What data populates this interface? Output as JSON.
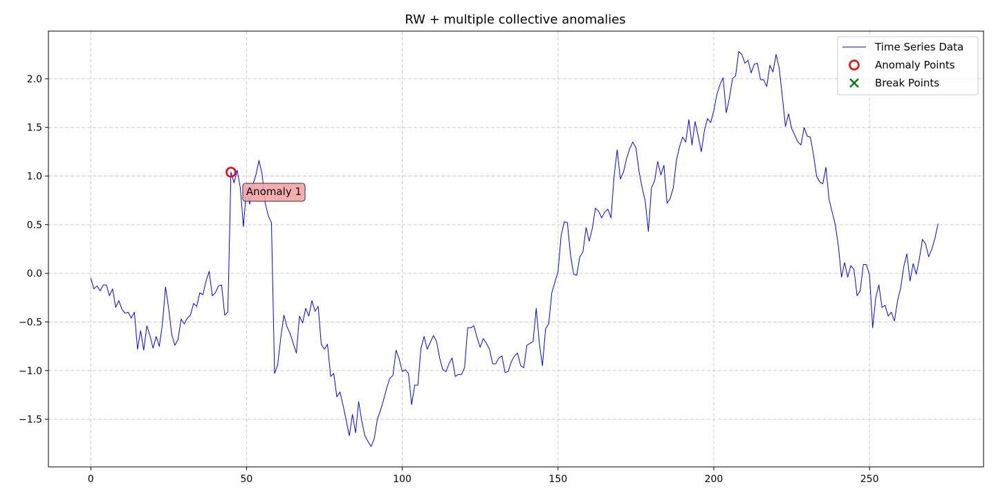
{
  "chart_data": {
    "type": "line",
    "title": "RW + multiple collective anomalies",
    "xlabel": "",
    "ylabel": "",
    "xlim": [
      -13.6,
      286.6
    ],
    "ylim": [
      -1.99,
      2.49
    ],
    "xticks": [
      0,
      50,
      100,
      150,
      200,
      250
    ],
    "yticks": [
      -1.5,
      -1.0,
      -0.5,
      0.0,
      0.5,
      1.0,
      1.5,
      2.0
    ],
    "xtick_labels": [
      "0",
      "50",
      "100",
      "150",
      "200",
      "250"
    ],
    "ytick_labels": [
      "−1.5",
      "−1.0",
      "−0.5",
      "0.0",
      "0.5",
      "1.0",
      "1.5",
      "2.0"
    ],
    "grid": true,
    "legend_position": "top-right",
    "series": [
      {
        "name": "Time Series Data",
        "color": "#0000ff",
        "x_start": 0,
        "values": [
          -0.05,
          -0.16,
          -0.13,
          -0.18,
          -0.12,
          -0.12,
          -0.23,
          -0.16,
          -0.35,
          -0.28,
          -0.37,
          -0.41,
          -0.4,
          -0.46,
          -0.4,
          -0.78,
          -0.59,
          -0.79,
          -0.54,
          -0.64,
          -0.77,
          -0.65,
          -0.75,
          -0.52,
          -0.14,
          -0.36,
          -0.63,
          -0.74,
          -0.68,
          -0.47,
          -0.52,
          -0.46,
          -0.43,
          -0.31,
          -0.34,
          -0.2,
          -0.22,
          -0.08,
          0.02,
          -0.23,
          -0.2,
          -0.13,
          -0.12,
          -0.43,
          -0.4,
          1.04,
          0.93,
          1.06,
          0.88,
          0.48,
          0.88,
          0.71,
          0.91,
          1.01,
          1.16,
          1.02,
          0.72,
          0.59,
          0.52,
          -1.03,
          -0.94,
          -0.66,
          -0.43,
          -0.55,
          -0.62,
          -0.72,
          -0.82,
          -0.44,
          -0.51,
          -0.36,
          -0.44,
          -0.28,
          -0.39,
          -0.34,
          -0.73,
          -0.78,
          -0.73,
          -1.06,
          -1.03,
          -1.27,
          -1.22,
          -1.36,
          -1.51,
          -1.67,
          -1.45,
          -1.64,
          -1.32,
          -1.52,
          -1.67,
          -1.73,
          -1.78,
          -1.7,
          -1.5,
          -1.41,
          -1.3,
          -1.18,
          -1.08,
          -1.05,
          -0.79,
          -0.88,
          -1.01,
          -0.99,
          -1.03,
          -1.35,
          -1.15,
          -1.15,
          -0.77,
          -0.65,
          -0.78,
          -0.71,
          -0.64,
          -0.7,
          -0.87,
          -0.99,
          -1.01,
          -0.93,
          -0.87,
          -1.06,
          -1.04,
          -1.04,
          -0.97,
          -0.56,
          -0.56,
          -0.54,
          -0.66,
          -0.76,
          -0.67,
          -0.72,
          -0.78,
          -0.93,
          -0.93,
          -0.87,
          -0.85,
          -1.02,
          -1.01,
          -0.91,
          -0.85,
          -0.82,
          -0.95,
          -0.97,
          -0.74,
          -0.72,
          -0.7,
          -0.36,
          -0.72,
          -0.95,
          -0.57,
          -0.52,
          -0.2,
          -0.09,
          0.02,
          0.39,
          0.53,
          0.52,
          0.19,
          -0.01,
          -0.02,
          0.17,
          0.22,
          0.47,
          0.33,
          0.46,
          0.67,
          0.64,
          0.57,
          0.63,
          0.66,
          0.57,
          1.0,
          1.27,
          0.97,
          1.04,
          1.18,
          1.28,
          1.35,
          1.29,
          1.05,
          0.88,
          0.74,
          0.43,
          0.88,
          0.95,
          1.15,
          1.01,
          1.11,
          0.72,
          0.77,
          0.88,
          1.16,
          1.3,
          1.4,
          1.35,
          1.58,
          1.32,
          1.56,
          1.41,
          1.25,
          1.47,
          1.59,
          1.55,
          1.67,
          1.84,
          1.94,
          2.01,
          1.65,
          1.8,
          2.0,
          2.03,
          2.28,
          2.25,
          2.16,
          2.19,
          2.06,
          2.15,
          2.16,
          1.99,
          1.99,
          1.92,
          2.14,
          2.07,
          2.25,
          2.11,
          1.82,
          1.51,
          1.64,
          1.49,
          1.42,
          1.35,
          1.32,
          1.5,
          1.41,
          1.4,
          1.22,
          1.0,
          0.94,
          0.92,
          1.09,
          0.76,
          0.63,
          0.5,
          0.28,
          -0.04,
          0.11,
          -0.04,
          0.08,
          0.04,
          -0.23,
          -0.18,
          0.09,
          0.09,
          -0.02,
          -0.56,
          -0.25,
          -0.12,
          -0.35,
          -0.33,
          -0.44,
          -0.4,
          -0.49,
          -0.28,
          -0.15,
          0.07,
          0.2,
          -0.08,
          0.1,
          -0.01,
          0.15,
          0.35,
          0.3,
          0.17,
          0.25,
          0.36,
          0.51
        ]
      }
    ],
    "anomaly_points": [
      {
        "x": 45,
        "y": 1.04,
        "color": "#ff0000"
      }
    ],
    "annotations": [
      {
        "text": "Anomaly 1",
        "x": 49,
        "y": 0.84,
        "bg": "#f4a4a4"
      }
    ],
    "legend": [
      {
        "label": "Time Series Data",
        "kind": "line",
        "color": "#0000ff"
      },
      {
        "label": "Anomaly Points",
        "kind": "circle",
        "color": "#ff0000"
      },
      {
        "label": "Break Points",
        "kind": "x",
        "color": "#008000"
      }
    ]
  }
}
